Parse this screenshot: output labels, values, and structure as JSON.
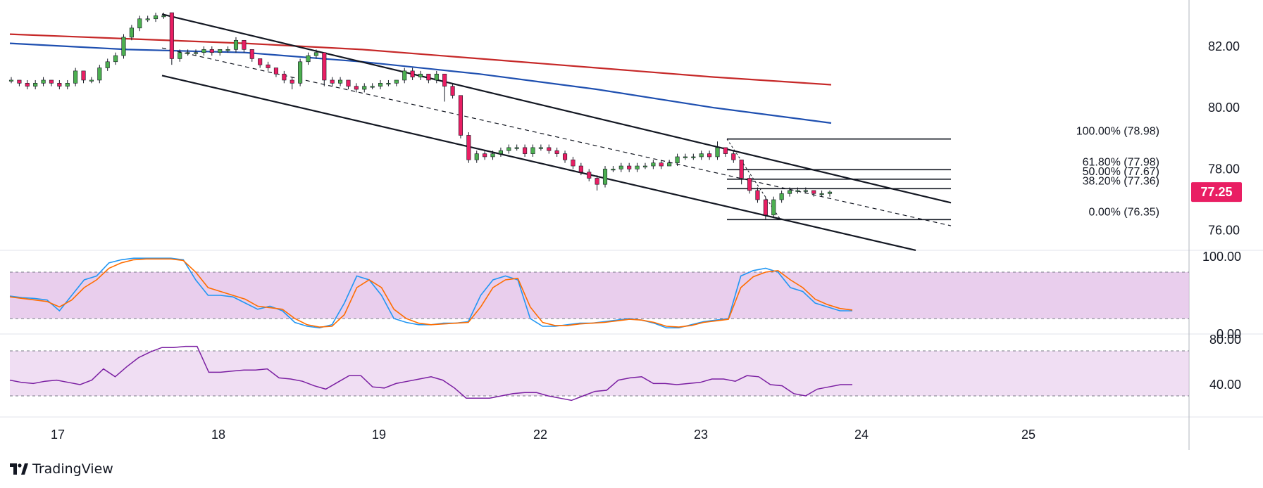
{
  "brand": {
    "name": "TradingView",
    "logo_icon": "tradingview-logo-icon"
  },
  "colors": {
    "bull": "#4caf50",
    "bear": "#e91e63",
    "ma_red": "#c62828",
    "ma_blue": "#1e4fb0",
    "channel": "#131722",
    "stoch_k": "#2196f3",
    "stoch_d": "#ff6d00",
    "rsi": "#7b1fa2",
    "band": "#e1bee7",
    "price_tag": "#e91e63"
  },
  "price_axis": {
    "ticks": [
      "82.00",
      "80.00",
      "78.00",
      "76.00"
    ]
  },
  "current_price": "77.25",
  "stoch_axis": {
    "ticks": [
      "100.00",
      "0.00"
    ]
  },
  "rsi_axis": {
    "ticks": [
      "80.00",
      "40.00"
    ]
  },
  "time_axis": {
    "labels": [
      "17",
      "18",
      "19",
      "22",
      "23",
      "24",
      "25"
    ]
  },
  "fib_labels": [
    "100.00% (78.98)",
    "61.80% (77.98)",
    "50.00% (77.67)",
    "38.20% (77.36)",
    "0.00% (76.35)"
  ],
  "chart_data": [
    {
      "type": "candlestick",
      "panel": "price",
      "x_ticks": [
        "17",
        "18",
        "19",
        "22",
        "23",
        "24",
        "25"
      ],
      "y_ticks": [
        82,
        80,
        78,
        76
      ],
      "ylim": [
        75.4,
        83.3
      ],
      "candles": [
        [
          80.9,
          80.9,
          81.0,
          80.8
        ],
        [
          80.9,
          80.8,
          80.9,
          80.7
        ],
        [
          80.8,
          80.7,
          80.9,
          80.6
        ],
        [
          80.7,
          80.8,
          80.9,
          80.6
        ],
        [
          80.8,
          80.9,
          81.0,
          80.7
        ],
        [
          80.9,
          80.8,
          80.9,
          80.7
        ],
        [
          80.8,
          80.7,
          80.9,
          80.6
        ],
        [
          80.7,
          80.8,
          80.9,
          80.6
        ],
        [
          80.8,
          81.2,
          81.3,
          80.7
        ],
        [
          81.2,
          80.9,
          81.2,
          80.8
        ],
        [
          80.9,
          80.9,
          81.0,
          80.8
        ],
        [
          80.9,
          81.3,
          81.4,
          80.8
        ],
        [
          81.3,
          81.5,
          81.6,
          81.2
        ],
        [
          81.5,
          81.7,
          81.8,
          81.4
        ],
        [
          81.7,
          82.3,
          82.4,
          81.6
        ],
        [
          82.3,
          82.6,
          82.7,
          82.2
        ],
        [
          82.6,
          82.9,
          83.0,
          82.5
        ],
        [
          82.9,
          82.9,
          83.0,
          82.8
        ],
        [
          82.9,
          83.0,
          83.1,
          82.8
        ],
        [
          83.0,
          83.0,
          83.1,
          82.9
        ],
        [
          83.1,
          81.6,
          83.1,
          81.4
        ],
        [
          81.6,
          81.8,
          81.9,
          81.5
        ],
        [
          81.8,
          81.8,
          81.9,
          81.7
        ],
        [
          81.8,
          81.8,
          81.9,
          81.7
        ],
        [
          81.8,
          81.9,
          82.0,
          81.7
        ],
        [
          81.9,
          81.8,
          82.0,
          81.7
        ],
        [
          81.8,
          81.9,
          81.9,
          81.7
        ],
        [
          81.9,
          81.9,
          82.0,
          81.8
        ],
        [
          81.9,
          82.2,
          82.3,
          81.8
        ],
        [
          82.2,
          81.9,
          82.2,
          81.8
        ],
        [
          81.9,
          81.6,
          81.9,
          81.5
        ],
        [
          81.6,
          81.4,
          81.6,
          81.3
        ],
        [
          81.4,
          81.3,
          81.5,
          81.2
        ],
        [
          81.3,
          81.1,
          81.3,
          81.0
        ],
        [
          81.1,
          80.9,
          81.2,
          80.8
        ],
        [
          80.9,
          80.8,
          81.0,
          80.6
        ],
        [
          80.8,
          81.5,
          81.6,
          80.7
        ],
        [
          81.5,
          81.7,
          81.8,
          81.4
        ],
        [
          81.7,
          81.8,
          81.9,
          81.6
        ],
        [
          81.8,
          80.9,
          81.8,
          80.7
        ],
        [
          80.9,
          80.8,
          81.0,
          80.7
        ],
        [
          80.8,
          80.9,
          81.0,
          80.7
        ],
        [
          80.9,
          80.7,
          80.9,
          80.6
        ],
        [
          80.7,
          80.6,
          80.8,
          80.5
        ],
        [
          80.6,
          80.7,
          80.8,
          80.5
        ],
        [
          80.7,
          80.7,
          80.8,
          80.6
        ],
        [
          80.7,
          80.8,
          80.9,
          80.6
        ],
        [
          80.8,
          80.8,
          80.9,
          80.7
        ],
        [
          80.8,
          80.9,
          80.9,
          80.7
        ],
        [
          80.9,
          81.2,
          81.3,
          80.8
        ],
        [
          81.2,
          81.0,
          81.3,
          80.9
        ],
        [
          81.0,
          81.1,
          81.2,
          80.9
        ],
        [
          81.1,
          80.9,
          81.1,
          80.8
        ],
        [
          80.9,
          81.1,
          81.2,
          80.8
        ],
        [
          81.1,
          80.7,
          81.1,
          80.2
        ],
        [
          80.7,
          80.4,
          80.8,
          80.3
        ],
        [
          80.4,
          79.1,
          80.4,
          79.0
        ],
        [
          79.1,
          78.3,
          79.2,
          78.2
        ],
        [
          78.3,
          78.5,
          78.6,
          78.2
        ],
        [
          78.5,
          78.4,
          78.6,
          78.3
        ],
        [
          78.4,
          78.5,
          78.6,
          78.3
        ],
        [
          78.5,
          78.6,
          78.7,
          78.4
        ],
        [
          78.6,
          78.7,
          78.8,
          78.5
        ],
        [
          78.7,
          78.7,
          78.8,
          78.6
        ],
        [
          78.7,
          78.5,
          78.8,
          78.4
        ],
        [
          78.5,
          78.7,
          78.8,
          78.4
        ],
        [
          78.7,
          78.7,
          78.8,
          78.6
        ],
        [
          78.7,
          78.6,
          78.8,
          78.5
        ],
        [
          78.6,
          78.5,
          78.7,
          78.4
        ],
        [
          78.5,
          78.3,
          78.6,
          78.2
        ],
        [
          78.3,
          78.1,
          78.4,
          78.0
        ],
        [
          78.1,
          77.9,
          78.2,
          77.8
        ],
        [
          77.9,
          77.7,
          78.0,
          77.6
        ],
        [
          77.7,
          77.5,
          77.8,
          77.3
        ],
        [
          77.5,
          78.0,
          78.1,
          77.4
        ],
        [
          78.0,
          78.0,
          78.1,
          77.9
        ],
        [
          78.0,
          78.1,
          78.2,
          77.9
        ],
        [
          78.1,
          78.0,
          78.2,
          77.9
        ],
        [
          78.0,
          78.1,
          78.2,
          77.9
        ],
        [
          78.1,
          78.1,
          78.2,
          78.0
        ],
        [
          78.1,
          78.2,
          78.3,
          78.0
        ],
        [
          78.2,
          78.1,
          78.3,
          78.0
        ],
        [
          78.1,
          78.2,
          78.3,
          78.1
        ],
        [
          78.2,
          78.4,
          78.5,
          78.1
        ],
        [
          78.4,
          78.4,
          78.5,
          78.3
        ],
        [
          78.4,
          78.4,
          78.5,
          78.3
        ],
        [
          78.4,
          78.5,
          78.6,
          78.3
        ],
        [
          78.5,
          78.4,
          78.6,
          78.3
        ],
        [
          78.4,
          78.7,
          78.9,
          78.3
        ],
        [
          78.7,
          78.5,
          78.7,
          78.4
        ],
        [
          78.5,
          78.3,
          78.6,
          78.2
        ],
        [
          78.3,
          77.7,
          78.3,
          77.5
        ],
        [
          77.7,
          77.3,
          77.8,
          77.2
        ],
        [
          77.3,
          77.0,
          77.4,
          76.9
        ],
        [
          77.0,
          76.5,
          77.1,
          76.35
        ],
        [
          76.5,
          77.0,
          77.1,
          76.4
        ],
        [
          77.0,
          77.2,
          77.3,
          76.9
        ],
        [
          77.2,
          77.3,
          77.4,
          77.1
        ],
        [
          77.3,
          77.3,
          77.4,
          77.2
        ],
        [
          77.3,
          77.3,
          77.4,
          77.2
        ],
        [
          77.3,
          77.2,
          77.3,
          77.1
        ],
        [
          77.2,
          77.2,
          77.3,
          77.1
        ],
        [
          77.2,
          77.25,
          77.3,
          77.1
        ]
      ],
      "moving_averages": [
        {
          "color": "red",
          "values": [
            82.4,
            82.25,
            82.1,
            81.9,
            81.6,
            81.3,
            81.0,
            80.75
          ]
        },
        {
          "color": "blue",
          "values": [
            82.1,
            81.9,
            81.8,
            81.5,
            81.1,
            80.6,
            80.0,
            79.5
          ]
        }
      ],
      "channel": {
        "upper": [
          83.05,
          76.9
        ],
        "lower": [
          81.05,
          75.35
        ],
        "mid": [
          81.95,
          76.15
        ]
      },
      "fibonacci": [
        {
          "level": "100.00%",
          "price": 78.98
        },
        {
          "level": "61.80%",
          "price": 77.98
        },
        {
          "level": "50.00%",
          "price": 77.67
        },
        {
          "level": "38.20%",
          "price": 77.36
        },
        {
          "level": "0.00%",
          "price": 76.35
        }
      ]
    },
    {
      "type": "line",
      "panel": "stochastic",
      "y_ticks": [
        100,
        0
      ],
      "ylim": [
        0,
        100
      ],
      "band": [
        80,
        20
      ],
      "series": [
        {
          "color": "blue",
          "values": [
            49,
            47,
            46,
            44,
            30,
            50,
            70,
            75,
            92,
            96,
            98,
            98,
            98,
            98,
            96,
            70,
            50,
            50,
            48,
            40,
            32,
            36,
            30,
            15,
            10,
            8,
            12,
            40,
            75,
            70,
            50,
            20,
            15,
            12,
            12,
            14,
            14,
            16,
            50,
            70,
            75,
            70,
            20,
            10,
            10,
            12,
            14,
            14,
            16,
            18,
            20,
            18,
            14,
            8,
            8,
            12,
            16,
            18,
            20,
            75,
            82,
            85,
            80,
            60,
            55,
            40,
            35,
            30,
            30
          ]
        },
        {
          "color": "orange",
          "values": [
            48,
            46,
            44,
            42,
            35,
            44,
            60,
            70,
            85,
            92,
            96,
            97,
            97,
            97,
            95,
            80,
            60,
            55,
            50,
            45,
            36,
            34,
            32,
            20,
            12,
            9,
            10,
            25,
            60,
            70,
            60,
            32,
            20,
            14,
            12,
            13,
            14,
            15,
            35,
            60,
            70,
            72,
            35,
            15,
            11,
            11,
            13,
            14,
            15,
            17,
            19,
            18,
            15,
            10,
            9,
            11,
            15,
            17,
            19,
            60,
            74,
            80,
            82,
            70,
            60,
            45,
            38,
            33,
            31
          ]
        }
      ]
    },
    {
      "type": "line",
      "panel": "rsi",
      "y_ticks": [
        80,
        40
      ],
      "ylim": [
        22,
        85
      ],
      "band": [
        70,
        30
      ],
      "series": [
        {
          "color": "purple",
          "values": [
            44,
            42,
            41,
            43,
            44,
            42,
            40,
            44,
            54,
            47,
            56,
            64,
            69,
            73,
            73,
            74,
            74,
            51,
            51,
            52,
            53,
            53,
            54,
            46,
            45,
            43,
            39,
            36,
            42,
            48,
            48,
            38,
            37,
            41,
            43,
            45,
            47,
            44,
            37,
            28,
            28,
            28,
            30,
            32,
            33,
            33,
            30,
            28,
            26,
            30,
            34,
            35,
            44,
            46,
            47,
            41,
            41,
            40,
            41,
            42,
            45,
            45,
            43,
            48,
            47,
            40,
            39,
            32,
            30,
            36,
            38,
            40,
            40
          ]
        }
      ]
    }
  ]
}
